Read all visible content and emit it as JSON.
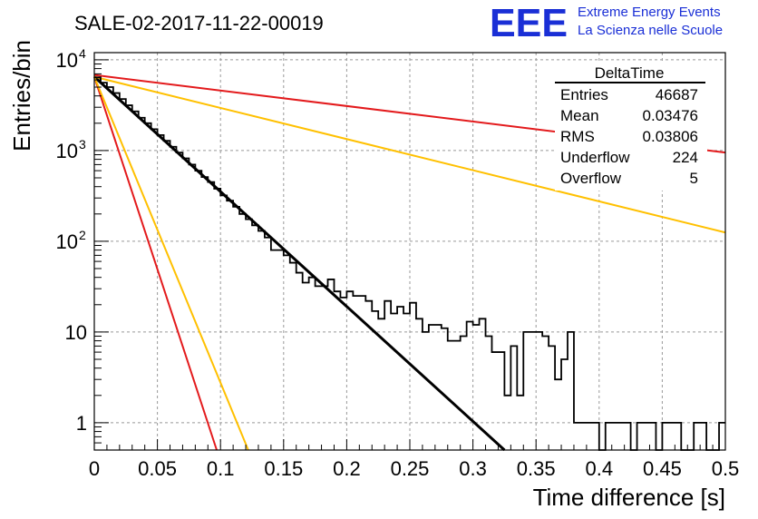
{
  "title": "SALE-02-2017-11-22-00019",
  "logo": {
    "mark": "EEE",
    "line1": "Extreme Energy Events",
    "line2": "La Scienza nelle Scuole",
    "color": "#1a2fd6"
  },
  "stats_box": {
    "name": "DeltaTime",
    "rows": [
      {
        "label": "Entries",
        "value": "46687"
      },
      {
        "label": "Mean",
        "value": "0.03476"
      },
      {
        "label": "RMS",
        "value": "0.03806"
      },
      {
        "label": "Underflow",
        "value": "224"
      },
      {
        "label": "Overflow",
        "value": "5"
      }
    ]
  },
  "chart_data": {
    "type": "line",
    "xlabel": "Time difference [s]",
    "ylabel": "Entries/bin",
    "xlim": [
      0,
      0.5
    ],
    "ylim": [
      0.5,
      12000
    ],
    "yscale": "log",
    "grid": true,
    "x_ticks": [
      "0",
      "0.05",
      "0.1",
      "0.15",
      "0.2",
      "0.25",
      "0.3",
      "0.35",
      "0.4",
      "0.45",
      "0.5"
    ],
    "y_ticks": [
      {
        "value": 1,
        "base": "1",
        "exp": ""
      },
      {
        "value": 10,
        "base": "10",
        "exp": ""
      },
      {
        "value": 100,
        "base": "10",
        "exp": "2"
      },
      {
        "value": 1000,
        "base": "10",
        "exp": "3"
      },
      {
        "value": 10000,
        "base": "10",
        "exp": "4"
      }
    ],
    "histogram": {
      "bin_width": 0.005,
      "color": "#000000",
      "values": [
        6400,
        5600,
        5000,
        4300,
        3700,
        3150,
        2700,
        2300,
        2000,
        1720,
        1480,
        1280,
        1100,
        950,
        820,
        700,
        600,
        510,
        450,
        380,
        320,
        280,
        240,
        200,
        175,
        150,
        130,
        110,
        80,
        80,
        70,
        58,
        45,
        35,
        40,
        32,
        32,
        38,
        28,
        24,
        28,
        25,
        25,
        22,
        17,
        14,
        22,
        16,
        19,
        16,
        21,
        14,
        10,
        12,
        12,
        11,
        8,
        8,
        9,
        13,
        12,
        14,
        9,
        6,
        6,
        2,
        7,
        2,
        10,
        10,
        10,
        9,
        7,
        3,
        5,
        10,
        1,
        1,
        1,
        1,
        0,
        1,
        1,
        1,
        1,
        0,
        1,
        1,
        1,
        0,
        1,
        1,
        1,
        0,
        0,
        1,
        1,
        0,
        0,
        1
      ]
    },
    "series": [
      {
        "color": "#000000",
        "x": [
          0,
          0.325
        ],
        "y": [
          6500,
          0.5
        ]
      },
      {
        "color": "#e31a1c",
        "x": [
          0,
          0.5
        ],
        "y": [
          6800,
          950
        ]
      },
      {
        "color": "#e31a1c",
        "x": [
          0,
          0.097
        ],
        "y": [
          6500,
          0.5
        ]
      },
      {
        "color": "#ffc000",
        "x": [
          0,
          0.5
        ],
        "y": [
          6500,
          125
        ]
      },
      {
        "color": "#ffc000",
        "x": [
          0,
          0.122
        ],
        "y": [
          6500,
          0.5
        ]
      }
    ]
  }
}
